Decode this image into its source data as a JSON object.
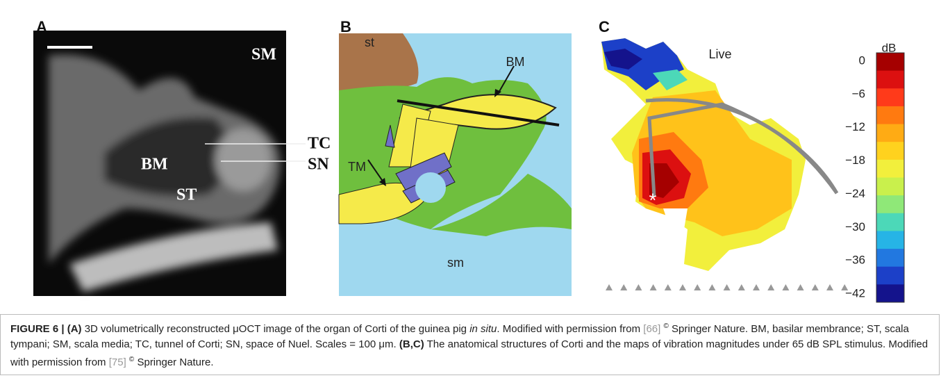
{
  "panels": {
    "a": {
      "label": "A",
      "annotations": [
        "SM",
        "TC",
        "SN",
        "BM",
        "ST"
      ]
    },
    "b": {
      "label": "B",
      "annotations": [
        "st",
        "BM",
        "TM",
        "sm"
      ]
    },
    "c": {
      "label": "C",
      "title": "Live",
      "colorbar": {
        "label": "dB",
        "ticks": [
          "0",
          "−6",
          "−12",
          "−18",
          "−24",
          "−30",
          "−36",
          "−42"
        ],
        "colors": [
          "#a50000",
          "#dc1010",
          "#ff3a1a",
          "#ff7a10",
          "#ffab14",
          "#ffd21e",
          "#f2ef3c",
          "#c9f04c",
          "#8fe878",
          "#4cd8b8",
          "#26b4e6",
          "#2278e0",
          "#1c40c8",
          "#14138c"
        ]
      }
    }
  },
  "caption": {
    "parts": [
      "FIGURE 6 | (A)",
      "3D volumetrically reconstructed μOCT image of the organ of Corti of the guinea pig",
      "in situ",
      ". Modified with permission from",
      "[66]",
      "©",
      "Springer Nature. BM, basilar membrance; ST, scala tympani; SM, scala media; TC, tunnel of Corti; SN, space of Nuel. Scales = 100 μm.",
      "(B,C)",
      "The anatomical structures of Corti and the maps of vibration magnitudes under 65 dB SPL stimulus. Modified with permission from",
      "[75]",
      "©",
      "Springer Nature."
    ]
  }
}
